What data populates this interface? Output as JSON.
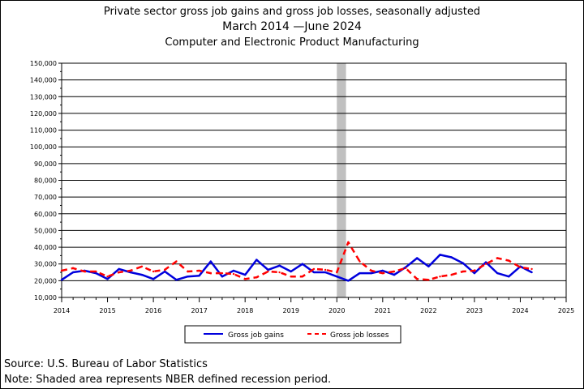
{
  "title": {
    "line1": "Private sector gross job gains and gross job losses, seasonally adjusted",
    "line2": "March 2014 —June 2024",
    "line3": "Computer and Electronic Product Manufacturing"
  },
  "footer": {
    "source": "Source: U.S. Bureau of Labor Statistics",
    "note": "Note: Shaded area represents NBER defined recession period."
  },
  "chart_data": {
    "type": "line",
    "xlim": [
      2014,
      2025
    ],
    "ylim": [
      10000,
      150000
    ],
    "x_ticks": [
      2014,
      2015,
      2016,
      2017,
      2018,
      2019,
      2020,
      2021,
      2022,
      2023,
      2024,
      2025
    ],
    "y_ticks": [
      10000,
      20000,
      30000,
      40000,
      50000,
      60000,
      70000,
      80000,
      90000,
      100000,
      110000,
      120000,
      130000,
      140000,
      150000
    ],
    "y_tick_labels": [
      "10,000",
      "20,000",
      "30,000",
      "40,000",
      "50,000",
      "60,000",
      "70,000",
      "80,000",
      "90,000",
      "100,000",
      "110,000",
      "120,000",
      "130,000",
      "140,000",
      "150,000"
    ],
    "grid": true,
    "legend_position": "bottom",
    "recession": {
      "start": 2020.0,
      "end": 2020.2,
      "color": "#c0c0c0"
    },
    "series": [
      {
        "name": "Gross job gains",
        "color": "#0000dd",
        "style": "solid",
        "x": [
          2014.0,
          2014.25,
          2014.5,
          2014.75,
          2015.0,
          2015.25,
          2015.5,
          2015.75,
          2016.0,
          2016.25,
          2016.5,
          2016.75,
          2017.0,
          2017.25,
          2017.5,
          2017.75,
          2018.0,
          2018.25,
          2018.5,
          2018.75,
          2019.0,
          2019.25,
          2019.5,
          2019.75,
          2020.0,
          2020.25,
          2020.5,
          2020.75,
          2021.0,
          2021.25,
          2021.5,
          2021.75,
          2022.0,
          2022.25,
          2022.5,
          2022.75,
          2023.0,
          2023.25,
          2023.5,
          2023.75,
          2024.0,
          2024.25
        ],
        "values": [
          20500,
          25000,
          26000,
          24500,
          21000,
          27000,
          25000,
          23500,
          21000,
          25500,
          20500,
          22500,
          23000,
          31500,
          22500,
          26000,
          23500,
          32500,
          26500,
          29000,
          25500,
          30000,
          25000,
          25000,
          22500,
          20000,
          24500,
          24500,
          26000,
          23500,
          28000,
          33500,
          28500,
          35500,
          34000,
          30500,
          24500,
          31000,
          24500,
          22500,
          28500,
          25000
        ]
      },
      {
        "name": "Gross job losses",
        "color": "#ff0000",
        "style": "dashed",
        "x": [
          2014.0,
          2014.25,
          2014.5,
          2014.75,
          2015.0,
          2015.25,
          2015.5,
          2015.75,
          2016.0,
          2016.25,
          2016.5,
          2016.75,
          2017.0,
          2017.25,
          2017.5,
          2017.75,
          2018.0,
          2018.25,
          2018.5,
          2018.75,
          2019.0,
          2019.25,
          2019.5,
          2019.75,
          2020.0,
          2020.25,
          2020.5,
          2020.75,
          2021.0,
          2021.25,
          2021.5,
          2021.75,
          2022.0,
          2022.25,
          2022.5,
          2022.75,
          2023.0,
          2023.25,
          2023.5,
          2023.75,
          2024.0,
          2024.25
        ],
        "values": [
          26000,
          27500,
          25500,
          25500,
          22500,
          25000,
          26000,
          28500,
          25500,
          26500,
          31500,
          25500,
          26000,
          24500,
          24500,
          24000,
          21000,
          22000,
          25500,
          25000,
          22500,
          22500,
          27000,
          26500,
          25000,
          43000,
          31500,
          26000,
          24500,
          25500,
          27500,
          21000,
          20500,
          22500,
          23500,
          25500,
          26000,
          30000,
          33500,
          32000,
          28000,
          27000
        ]
      }
    ]
  }
}
